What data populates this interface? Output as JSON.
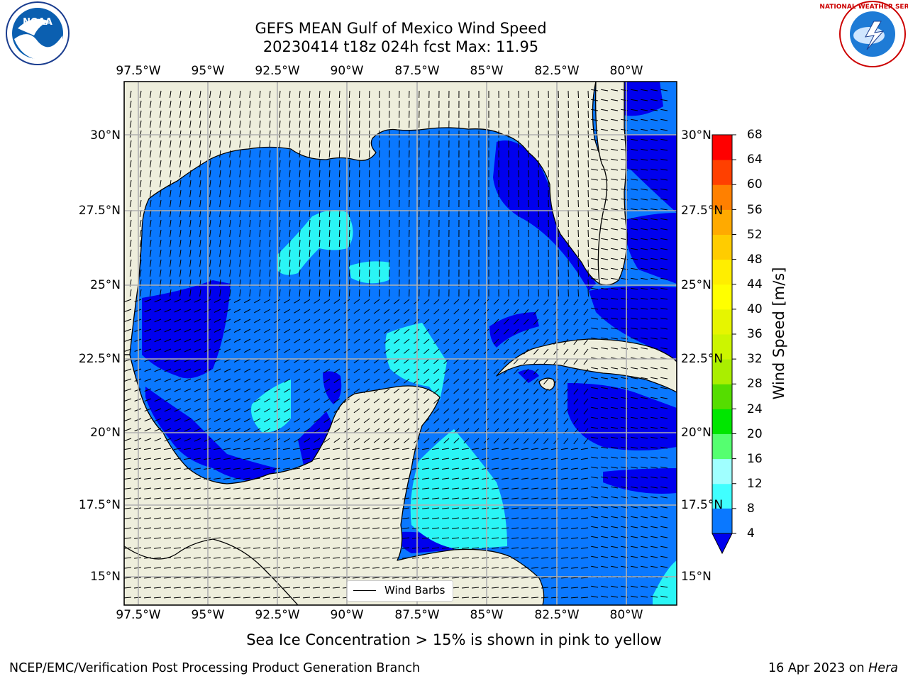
{
  "title_line1": "GEFS MEAN Gulf of Mexico Wind Speed",
  "title_line2": "20230414 t18z 024h fcst   Max: 11.95",
  "lon_labels": [
    "97.5°W",
    "95°W",
    "92.5°W",
    "90°W",
    "87.5°W",
    "85°W",
    "82.5°W",
    "80°W"
  ],
  "lat_labels": [
    "30°N",
    "27.5°N",
    "25°N",
    "22.5°N",
    "20°N",
    "17.5°N",
    "15°N"
  ],
  "legend_label": "Wind Barbs",
  "colorbar_label": "Wind Speed [m/s]",
  "colorbar_ticks": [
    "4",
    "8",
    "12",
    "16",
    "20",
    "24",
    "28",
    "32",
    "36",
    "40",
    "44",
    "48",
    "52",
    "56",
    "60",
    "64",
    "68"
  ],
  "colorbar_colors": [
    "#0a78ff",
    "#00ffff",
    "#40ffff",
    "#a0ffff",
    "#55ff70",
    "#00e600",
    "#55dd00",
    "#aaee00",
    "#ccf500",
    "#e6f500",
    "#ffff00",
    "#ffee00",
    "#ffcc00",
    "#ffaa00",
    "#ff8000",
    "#ff4000",
    "#ff0000"
  ],
  "colors": {
    "land": "#eeeedc",
    "ocean_4_8": "#0a78ff",
    "ocean_lt4": "#0000ee",
    "ocean_8_12": "#00ffff",
    "ocean_12_16": "#40ffff",
    "grid": "#b0b0b0"
  },
  "subtitle": "Sea Ice Concentration > 15% is shown in pink to yellow",
  "footer_left": "NCEP/EMC/Verification Post Processing Product Generation Branch",
  "footer_date": "16 Apr 2023 on ",
  "footer_host": "Hera",
  "logos": {
    "left": "NOAA",
    "right": "NATIONAL WEATHER SERVICE"
  }
}
